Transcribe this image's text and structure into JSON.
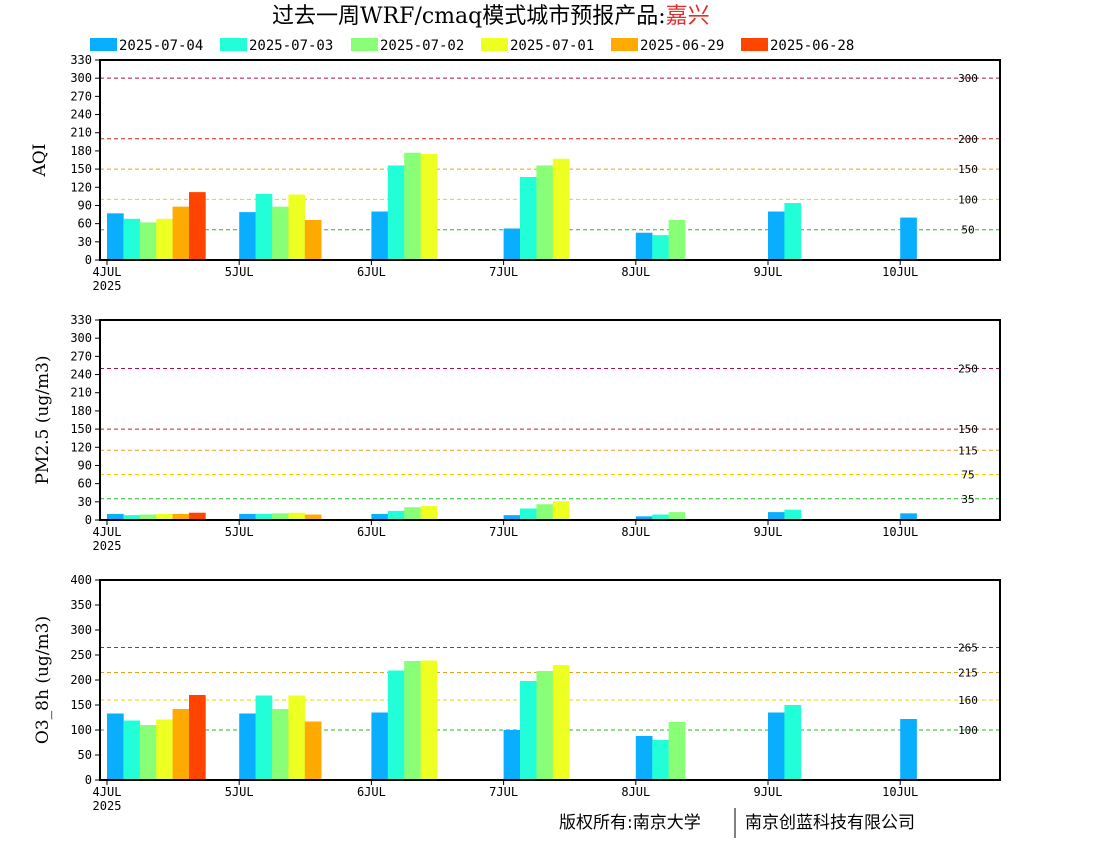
{
  "header": {
    "title": "过去一周WRF/cmaq模式城市预报产品:",
    "city": "嘉兴"
  },
  "footer": {
    "left": "版权所有:南京大学",
    "right": "南京创蓝科技有限公司"
  },
  "colors": {
    "frame": "#000000",
    "dashed_green": "#22bb22",
    "dashed_yellow": "#e8d400",
    "dashed_orange": "#e8a020",
    "dashed_red": "#cc2222",
    "dashed_purple": "#aa1155"
  },
  "chart_data": {
    "type": "bar",
    "series": [
      {
        "name": "2025-07-04",
        "color": "#0aaeff"
      },
      {
        "name": "2025-07-03",
        "color": "#22ffd8"
      },
      {
        "name": "2025-07-02",
        "color": "#88ff77"
      },
      {
        "name": "2025-07-01",
        "color": "#eeff22"
      },
      {
        "name": "2025-06-29",
        "color": "#ffaa00"
      },
      {
        "name": "2025-06-28",
        "color": "#ff4400"
      }
    ],
    "x_axis": {
      "ticks": [
        "4JUL",
        "5JUL",
        "6JUL",
        "7JUL",
        "8JUL",
        "9JUL",
        "10JUL"
      ],
      "year_label": "2025",
      "range_days": [
        0,
        6.75
      ]
    },
    "panels": [
      {
        "id": "aqi",
        "ylabel": "AQI",
        "ylim": [
          0,
          330
        ],
        "yticks": [
          0,
          30,
          60,
          90,
          120,
          150,
          180,
          210,
          240,
          270,
          300,
          330
        ],
        "thresholds": [
          {
            "value": 50,
            "label": "50",
            "color": "#22bb22"
          },
          {
            "value": 100,
            "label": "100",
            "color": "#e8d400"
          },
          {
            "value": 150,
            "label": "150",
            "color": "#e8a020"
          },
          {
            "value": 200,
            "label": "200",
            "color": "#cc2222"
          },
          {
            "value": 300,
            "label": "300",
            "color": "#aa1155"
          }
        ],
        "days": [
          [
            {
              "s": 0,
              "v": 77
            },
            {
              "s": 1,
              "v": 68
            },
            {
              "s": 2,
              "v": 62
            },
            {
              "s": 3,
              "v": 68
            },
            {
              "s": 4,
              "v": 88
            },
            {
              "s": 5,
              "v": 112
            }
          ],
          [
            {
              "s": 0,
              "v": 79
            },
            {
              "s": 1,
              "v": 109
            },
            {
              "s": 2,
              "v": 88
            },
            {
              "s": 3,
              "v": 108
            },
            {
              "s": 4,
              "v": 66
            }
          ],
          [
            {
              "s": 0,
              "v": 80
            },
            {
              "s": 1,
              "v": 156
            },
            {
              "s": 2,
              "v": 177
            },
            {
              "s": 3,
              "v": 175
            }
          ],
          [
            {
              "s": 0,
              "v": 52
            },
            {
              "s": 1,
              "v": 137
            },
            {
              "s": 2,
              "v": 156
            },
            {
              "s": 3,
              "v": 167
            }
          ],
          [
            {
              "s": 0,
              "v": 45
            },
            {
              "s": 1,
              "v": 41
            },
            {
              "s": 2,
              "v": 66
            }
          ],
          [
            {
              "s": 0,
              "v": 80
            },
            {
              "s": 1,
              "v": 94
            }
          ],
          [
            {
              "s": 0,
              "v": 70
            }
          ]
        ]
      },
      {
        "id": "pm25",
        "ylabel": "PM2.5 (ug/m3)",
        "ylim": [
          0,
          330
        ],
        "yticks": [
          0,
          30,
          60,
          90,
          120,
          150,
          180,
          210,
          240,
          270,
          300,
          330
        ],
        "thresholds": [
          {
            "value": 35,
            "label": "35",
            "color": "#22bb22"
          },
          {
            "value": 75,
            "label": "75",
            "color": "#e8d400"
          },
          {
            "value": 115,
            "label": "115",
            "color": "#e8a020"
          },
          {
            "value": 150,
            "label": "150",
            "color": "#cc2222"
          },
          {
            "value": 250,
            "label": "250",
            "color": "#aa1155"
          }
        ],
        "days": [
          [
            {
              "s": 0,
              "v": 10
            },
            {
              "s": 1,
              "v": 8
            },
            {
              "s": 2,
              "v": 9
            },
            {
              "s": 3,
              "v": 10
            },
            {
              "s": 4,
              "v": 10
            },
            {
              "s": 5,
              "v": 12
            }
          ],
          [
            {
              "s": 0,
              "v": 10
            },
            {
              "s": 1,
              "v": 10
            },
            {
              "s": 2,
              "v": 11
            },
            {
              "s": 3,
              "v": 12
            },
            {
              "s": 4,
              "v": 9
            }
          ],
          [
            {
              "s": 0,
              "v": 10
            },
            {
              "s": 1,
              "v": 15
            },
            {
              "s": 2,
              "v": 21
            },
            {
              "s": 3,
              "v": 23
            }
          ],
          [
            {
              "s": 0,
              "v": 8
            },
            {
              "s": 1,
              "v": 19
            },
            {
              "s": 2,
              "v": 26
            },
            {
              "s": 3,
              "v": 31
            }
          ],
          [
            {
              "s": 0,
              "v": 6
            },
            {
              "s": 1,
              "v": 9
            },
            {
              "s": 2,
              "v": 13
            }
          ],
          [
            {
              "s": 0,
              "v": 13
            },
            {
              "s": 1,
              "v": 17
            }
          ],
          [
            {
              "s": 0,
              "v": 11
            }
          ]
        ]
      },
      {
        "id": "o3",
        "ylabel": "O3_8h (ug/m3)",
        "ylim": [
          0,
          400
        ],
        "yticks": [
          0,
          50,
          100,
          150,
          200,
          250,
          300,
          350,
          400
        ],
        "thresholds": [
          {
            "value": 100,
            "label": "100",
            "color": "#22bb22"
          },
          {
            "value": 160,
            "label": "160",
            "color": "#e8d400"
          },
          {
            "value": 215,
            "label": "215",
            "color": "#e8a020"
          },
          {
            "value": 265,
            "label": "265",
            "color": "#cc2222"
          }
        ],
        "days": [
          [
            {
              "s": 0,
              "v": 133
            },
            {
              "s": 1,
              "v": 119
            },
            {
              "s": 2,
              "v": 110
            },
            {
              "s": 3,
              "v": 121
            },
            {
              "s": 4,
              "v": 142
            },
            {
              "s": 5,
              "v": 170
            }
          ],
          [
            {
              "s": 0,
              "v": 133
            },
            {
              "s": 1,
              "v": 169
            },
            {
              "s": 2,
              "v": 142
            },
            {
              "s": 3,
              "v": 169
            },
            {
              "s": 4,
              "v": 117
            }
          ],
          [
            {
              "s": 0,
              "v": 135
            },
            {
              "s": 1,
              "v": 219
            },
            {
              "s": 2,
              "v": 238
            },
            {
              "s": 3,
              "v": 239
            }
          ],
          [
            {
              "s": 0,
              "v": 100
            },
            {
              "s": 1,
              "v": 198
            },
            {
              "s": 2,
              "v": 218
            },
            {
              "s": 3,
              "v": 230
            }
          ],
          [
            {
              "s": 0,
              "v": 88
            },
            {
              "s": 1,
              "v": 80
            },
            {
              "s": 2,
              "v": 116
            }
          ],
          [
            {
              "s": 0,
              "v": 135
            },
            {
              "s": 1,
              "v": 150
            }
          ],
          [
            {
              "s": 0,
              "v": 122
            }
          ]
        ]
      }
    ]
  }
}
